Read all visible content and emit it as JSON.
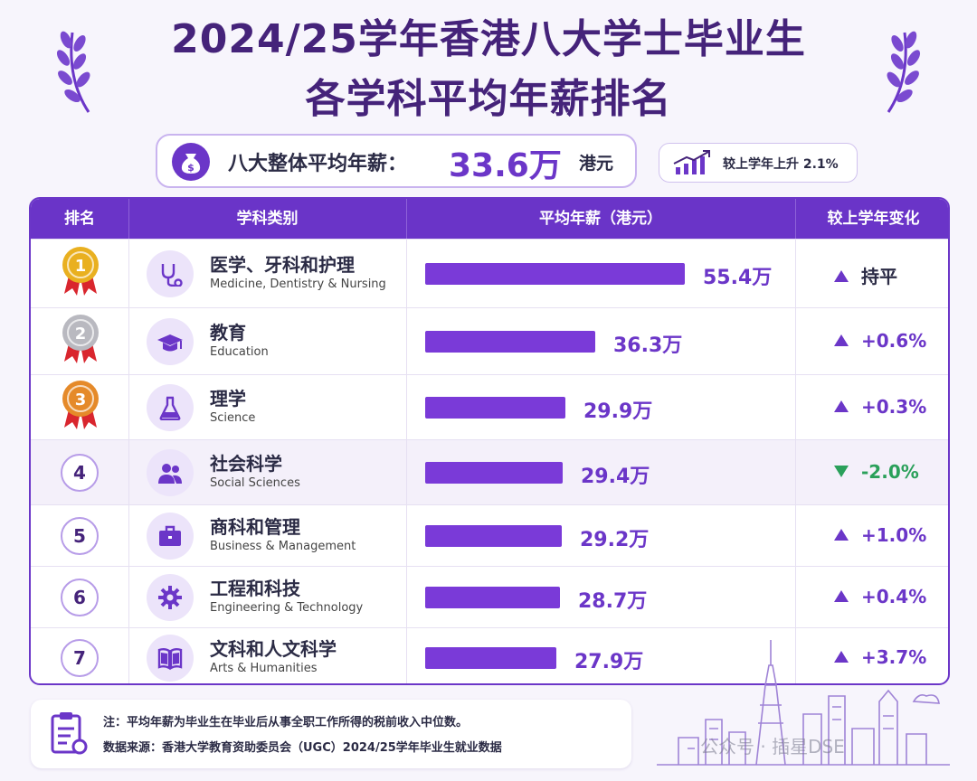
{
  "title_line1": "2024/25学年香港八大学士毕业生",
  "title_line2": "各学科平均年薪排名",
  "summary": {
    "label": "八大整体平均年薪：",
    "value": "33.6万",
    "unit": "港元"
  },
  "change_badge": "较上学年上升 2.1%",
  "chart_data": {
    "type": "bar",
    "headers": [
      "排名",
      "学科类别",
      "平均年薪（港元）",
      "较上学年变化"
    ],
    "categories": [
      "医学、牙科和护理",
      "教育",
      "理学",
      "社会科学",
      "商科和管理",
      "工程和科技",
      "文科和人文科学"
    ],
    "values": [
      55.4,
      36.3,
      29.9,
      29.4,
      29.2,
      28.7,
      27.9
    ],
    "unit": "万",
    "rows": [
      {
        "rank": "1",
        "rank_style": "gold",
        "zh": "医学、牙科和护理",
        "en": "Medicine, Dentistry & Nursing",
        "icon": "stethoscope-icon",
        "value": 55.4,
        "label": "55.4万",
        "change": "持平",
        "dir": "up"
      },
      {
        "rank": "2",
        "rank_style": "silver",
        "zh": "教育",
        "en": "Education",
        "icon": "graduation-cap-icon",
        "value": 36.3,
        "label": "36.3万",
        "change": "+0.6%",
        "dir": "up"
      },
      {
        "rank": "3",
        "rank_style": "bronze",
        "zh": "理学",
        "en": "Science",
        "icon": "flask-icon",
        "value": 29.9,
        "label": "29.9万",
        "change": "+0.3%",
        "dir": "up"
      },
      {
        "rank": "4",
        "rank_style": "plain",
        "zh": "社会科学",
        "en": "Social Sciences",
        "icon": "people-icon",
        "value": 29.4,
        "label": "29.4万",
        "change": "-2.0%",
        "dir": "down"
      },
      {
        "rank": "5",
        "rank_style": "plain",
        "zh": "商科和管理",
        "en": "Business & Management",
        "icon": "briefcase-icon",
        "value": 29.2,
        "label": "29.2万",
        "change": "+1.0%",
        "dir": "up"
      },
      {
        "rank": "6",
        "rank_style": "plain",
        "zh": "工程和科技",
        "en": "Engineering & Technology",
        "icon": "gear-icon",
        "value": 28.7,
        "label": "28.7万",
        "change": "+0.4%",
        "dir": "up"
      },
      {
        "rank": "7",
        "rank_style": "plain",
        "zh": "文科和人文科学",
        "en": "Arts & Humanities",
        "icon": "book-icon",
        "value": 27.9,
        "label": "27.9万",
        "change": "+3.7%",
        "dir": "up"
      }
    ]
  },
  "colors": {
    "primary": "#6b36c8",
    "header": "#6a34c8",
    "up": "#6b36c8",
    "down": "#2aa05a",
    "gold": "#e9b020",
    "silver": "#b9b9c0",
    "bronze": "#e58a2a"
  },
  "note_line1": "注：平均年薪为毕业生在毕业后从事全职工作所得的税前收入中位数。",
  "note_line2": "数据来源：香港大学教育资助委员会（UGC）2024/25学年毕业生就业数据",
  "watermark": "公众号 · 插星DSE"
}
